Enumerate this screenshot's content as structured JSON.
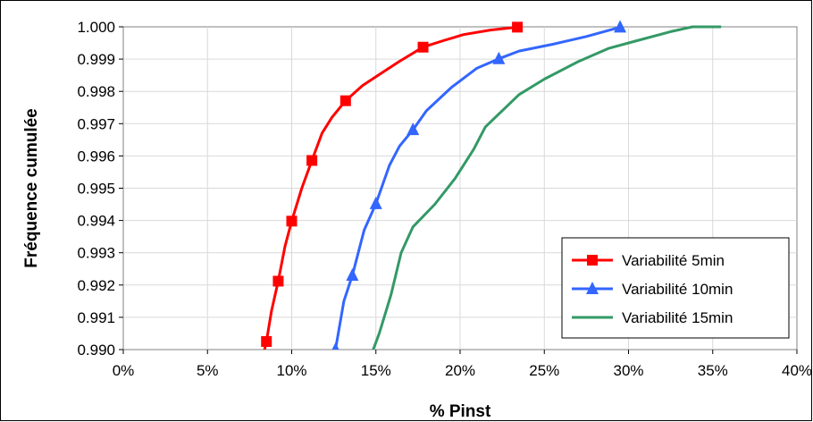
{
  "chart_data": {
    "type": "line",
    "title": "",
    "xlabel": "% Pinst",
    "ylabel": "Fréquence cumulée",
    "xlim": [
      0,
      40
    ],
    "ylim": [
      0.99,
      1.0
    ],
    "grid": true,
    "legend_position": "bottom-right",
    "x_ticks": [
      "0%",
      "5%",
      "10%",
      "15%",
      "20%",
      "25%",
      "30%",
      "35%",
      "40%"
    ],
    "y_ticks": [
      "0.990",
      "0.991",
      "0.992",
      "0.993",
      "0.994",
      "0.995",
      "0.996",
      "0.997",
      "0.998",
      "0.999",
      "1.000"
    ],
    "series": [
      {
        "name": "Variabilité 5min",
        "color": "#ff0000",
        "marker": "square",
        "points": [
          [
            8.3,
            0.9898
          ],
          [
            8.5,
            0.99025
          ],
          [
            8.8,
            0.9912
          ],
          [
            9.2,
            0.99212
          ],
          [
            9.6,
            0.9932
          ],
          [
            10.0,
            0.99398
          ],
          [
            10.6,
            0.995
          ],
          [
            11.2,
            0.99586
          ],
          [
            11.8,
            0.9967
          ],
          [
            12.4,
            0.9972
          ],
          [
            13.2,
            0.99771
          ],
          [
            14.2,
            0.99818
          ],
          [
            15.2,
            0.99852
          ],
          [
            16.4,
            0.99893
          ],
          [
            17.8,
            0.99937
          ],
          [
            19.0,
            0.99957
          ],
          [
            20.2,
            0.99976
          ],
          [
            21.8,
            0.9999
          ],
          [
            23.4,
            0.99999
          ]
        ],
        "markers": [
          [
            8.5,
            0.99025
          ],
          [
            9.2,
            0.99212
          ],
          [
            10.0,
            0.99398
          ],
          [
            11.2,
            0.99586
          ],
          [
            13.2,
            0.99771
          ],
          [
            17.8,
            0.99937
          ],
          [
            23.4,
            0.99999
          ]
        ]
      },
      {
        "name": "Variabilité 10min",
        "color": "#3366ff",
        "marker": "triangle",
        "points": [
          [
            12.3,
            0.9897
          ],
          [
            12.6,
            0.99
          ],
          [
            13.1,
            0.9915
          ],
          [
            13.6,
            0.9923
          ],
          [
            14.3,
            0.9937
          ],
          [
            15.0,
            0.99452
          ],
          [
            15.8,
            0.9957
          ],
          [
            16.4,
            0.9963
          ],
          [
            17.2,
            0.99681
          ],
          [
            18.0,
            0.9974
          ],
          [
            19.5,
            0.99813
          ],
          [
            21.0,
            0.99872
          ],
          [
            22.3,
            0.99901
          ],
          [
            23.5,
            0.99925
          ],
          [
            25.5,
            0.99946
          ],
          [
            27.5,
            0.9997
          ],
          [
            29.5,
            0.99999
          ]
        ],
        "markers": [
          [
            12.6,
            0.99
          ],
          [
            13.6,
            0.9923
          ],
          [
            15.0,
            0.99452
          ],
          [
            17.2,
            0.99681
          ],
          [
            22.3,
            0.99901
          ],
          [
            29.5,
            0.99999
          ]
        ]
      },
      {
        "name": "Variabilité 15min",
        "color": "#339966",
        "marker": "none",
        "points": [
          [
            14.7,
            0.9898
          ],
          [
            15.2,
            0.9905
          ],
          [
            15.9,
            0.9917
          ],
          [
            16.5,
            0.993
          ],
          [
            17.2,
            0.9938
          ],
          [
            18.5,
            0.9945
          ],
          [
            19.7,
            0.9953
          ],
          [
            20.8,
            0.9962
          ],
          [
            21.5,
            0.9969
          ],
          [
            22.5,
            0.9974
          ],
          [
            23.5,
            0.9979
          ],
          [
            25.0,
            0.99838
          ],
          [
            27.0,
            0.99892
          ],
          [
            28.8,
            0.99933
          ],
          [
            30.5,
            0.99957
          ],
          [
            32.5,
            0.99985
          ],
          [
            33.8,
            1.0
          ],
          [
            35.5,
            1.0
          ]
        ],
        "markers": []
      }
    ]
  }
}
